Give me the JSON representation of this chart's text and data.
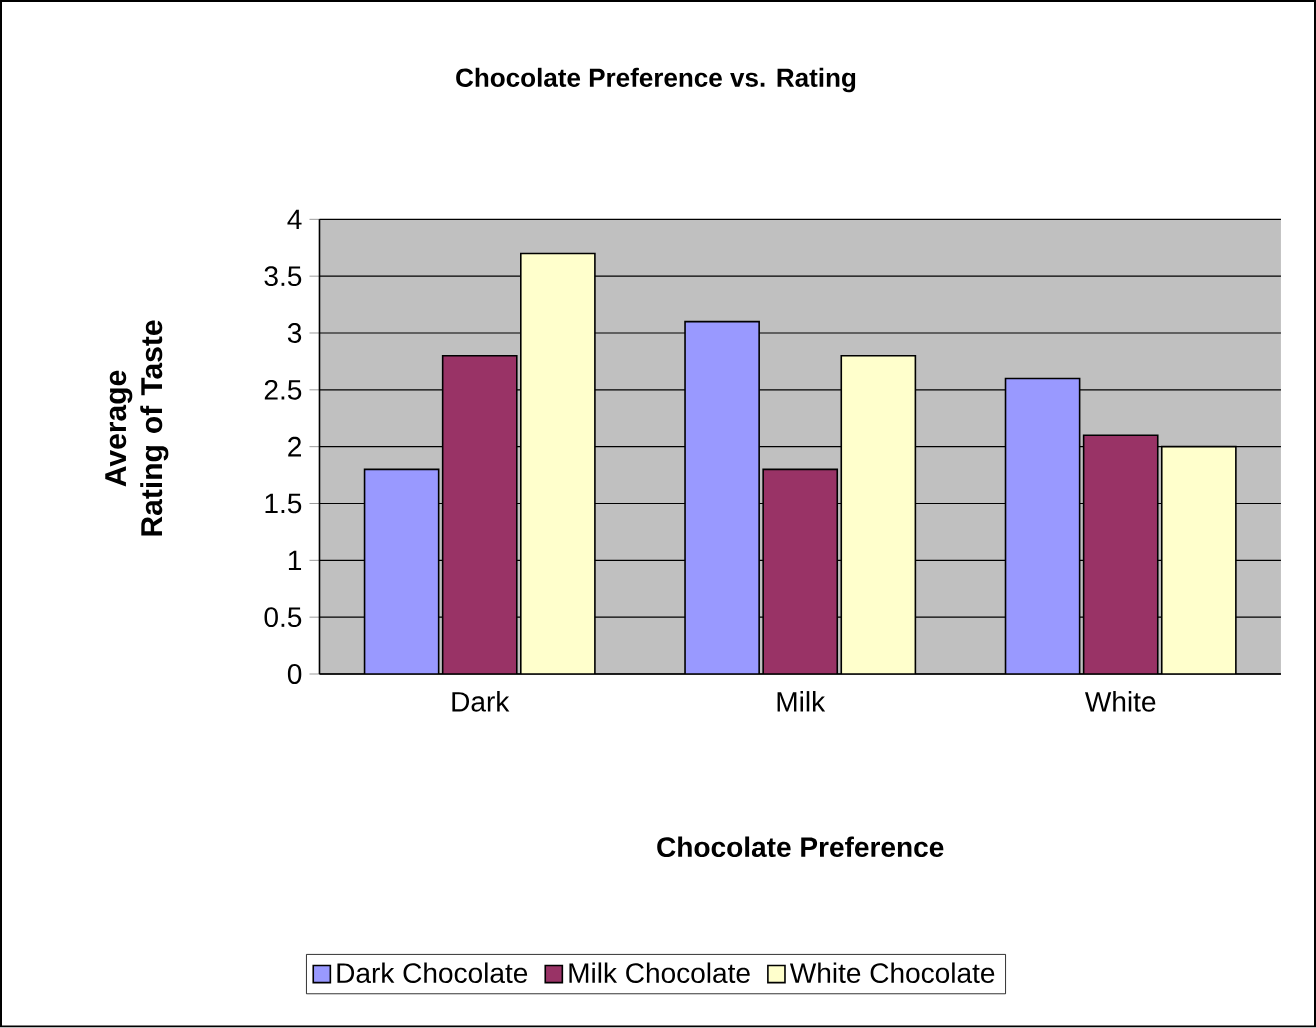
{
  "chart_data": {
    "type": "bar",
    "title": "Chocolate Preference vs. Rating",
    "xlabel": "Chocolate Preference",
    "ylabel": "Average Rating of Taste",
    "categories": [
      "Dark",
      "Milk",
      "White"
    ],
    "series": [
      {
        "name": "Dark Chocolate",
        "color": "#9999ff",
        "values": [
          1.8,
          3.1,
          2.6
        ]
      },
      {
        "name": "Milk Chocolate",
        "color": "#993366",
        "values": [
          2.8,
          1.8,
          2.1
        ]
      },
      {
        "name": "White Chocolate",
        "color": "#ffffcc",
        "values": [
          3.7,
          2.8,
          2.0
        ]
      }
    ],
    "ylim": [
      0,
      4
    ],
    "yticks": [
      0,
      0.5,
      1,
      1.5,
      2,
      2.5,
      3,
      3.5,
      4
    ],
    "grid": "y",
    "legend": "bottom"
  }
}
